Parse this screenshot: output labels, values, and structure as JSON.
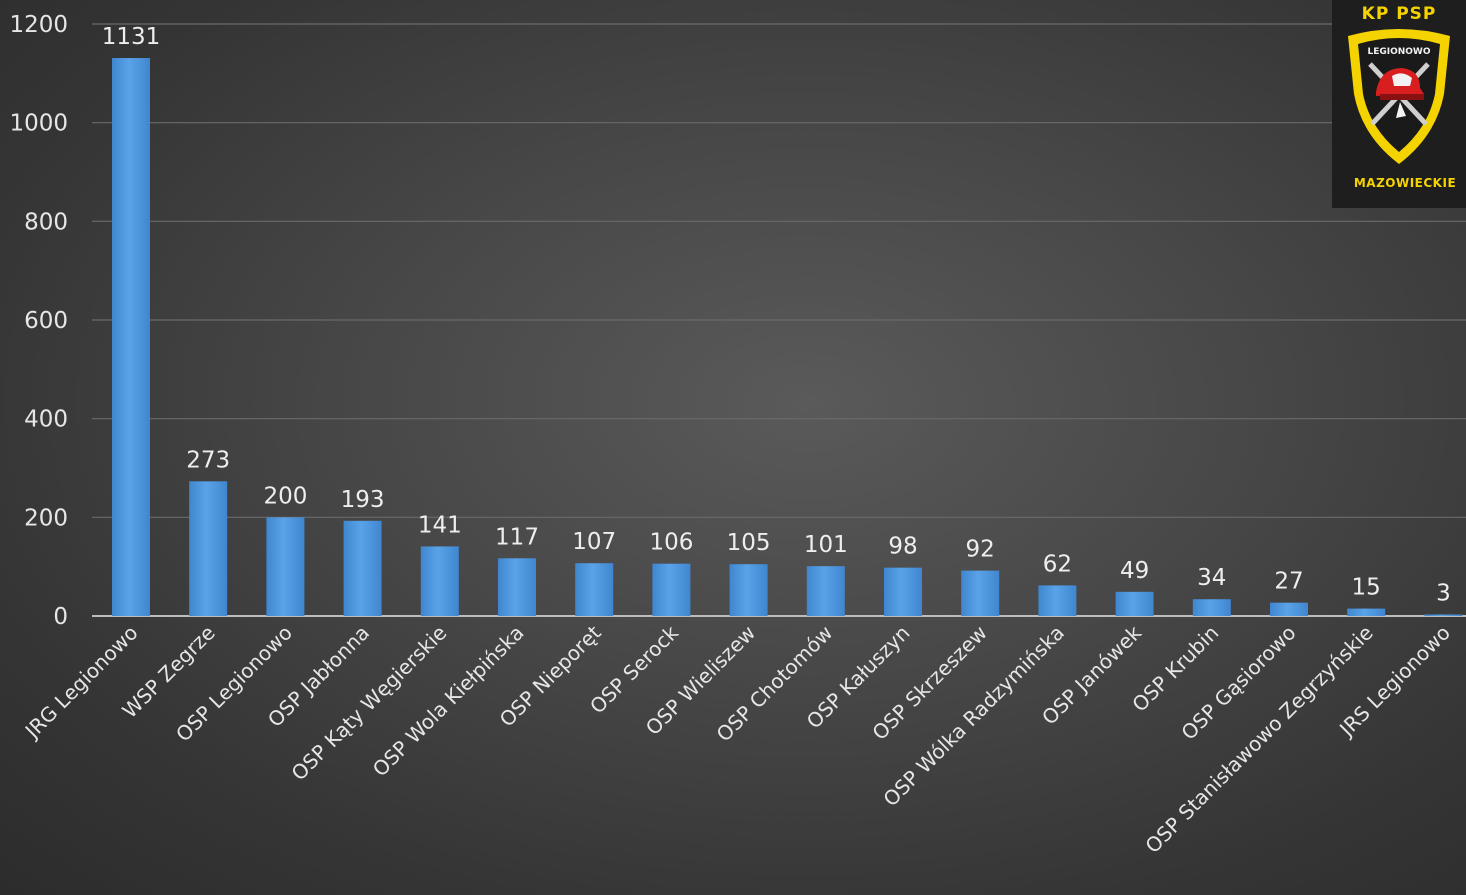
{
  "chart_data": {
    "type": "bar",
    "title": "",
    "xlabel": "",
    "ylabel": "",
    "ylim": [
      0,
      1200
    ],
    "yticks": [
      0,
      200,
      400,
      600,
      800,
      1000,
      1200
    ],
    "grid": true,
    "bar_color": "#4f97dd",
    "categories": [
      "JRG Legionowo",
      "WSP Zegrze",
      "OSP Legionowo",
      "OSP Jabłonna",
      "OSP Kąty Węgierskie",
      "OSP Wola Kiełpińska",
      "OSP Nieporęt",
      "OSP Serock",
      "OSP Wieliszew",
      "OSP Chotomów",
      "OSP Kałuszyn",
      "OSP Skrzeszew",
      "OSP Wólka Radzymińska",
      "OSP Janówek",
      "OSP Krubin",
      "OSP Gąsiorowo",
      "OSP Stanisławowo Zegrzyńskie",
      "JRS Legionowo"
    ],
    "values": [
      1131,
      273,
      200,
      193,
      141,
      117,
      107,
      106,
      105,
      101,
      98,
      92,
      62,
      49,
      34,
      27,
      15,
      3
    ]
  },
  "logo": {
    "top_text": "KP PSP",
    "middle_text": "LEGIONOWO",
    "bottom_text": "MAZOWIECKIE",
    "primary_color": "#f5d300",
    "background_color": "#1e1e1e",
    "icon": "fire-brigade-helmet-emblem"
  }
}
